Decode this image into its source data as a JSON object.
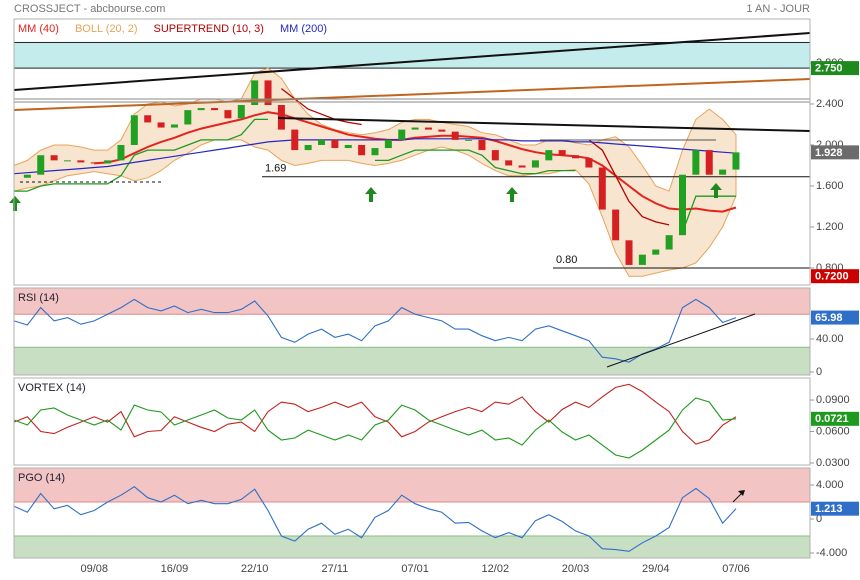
{
  "header": {
    "title": "CROSSJECT - abcbourse.com",
    "period": "1 AN - JOUR"
  },
  "chart_data": [
    {
      "type": "candlestick",
      "categories": [
        null,
        null,
        null,
        null,
        null,
        null,
        "09/08",
        null,
        null,
        null,
        null,
        null,
        "16/09",
        null,
        null,
        null,
        null,
        null,
        "22/10",
        null,
        null,
        null,
        null,
        null,
        "27/11",
        null,
        null,
        null,
        null,
        null,
        "07/01",
        null,
        null,
        null,
        null,
        null,
        "12/02",
        null,
        null,
        null,
        null,
        null,
        "20/03",
        null,
        null,
        null,
        null,
        null,
        "29/04",
        null,
        null,
        null,
        null,
        null,
        "07/06"
      ],
      "values": [
        1.68,
        1.71,
        1.9,
        1.85,
        1.85,
        1.83,
        1.82,
        1.85,
        2.0,
        2.29,
        2.22,
        2.17,
        2.2,
        2.34,
        2.36,
        2.34,
        2.26,
        2.39,
        2.63,
        2.39,
        2.15,
        1.95,
        2.0,
        2.05,
        1.97,
        2.0,
        1.9,
        1.97,
        2.05,
        2.15,
        2.17,
        2.15,
        2.13,
        2.05,
        2.05,
        1.95,
        1.85,
        1.8,
        1.78,
        1.85,
        1.95,
        1.9,
        1.87,
        1.78,
        1.37,
        1.07,
        0.83,
        0.93,
        0.98,
        1.12,
        1.71,
        1.95,
        1.71,
        1.76,
        1.928
      ],
      "up_color": "#22a022",
      "down_color": "#d42020",
      "last_color": "#6b6b6b",
      "ylim": [
        0.634,
        3.229
      ],
      "yticks": [
        {
          "value": 2.8,
          "label": "2.800"
        },
        {
          "value": 2.4,
          "label": "2.400"
        },
        {
          "value": 2.0,
          "label": "2.000"
        },
        {
          "value": 1.6,
          "label": "1.600"
        },
        {
          "value": 1.2,
          "label": "1.200"
        },
        {
          "value": 0.8,
          "label": "0.800"
        }
      ],
      "zones": [
        {
          "from": 2.75,
          "to": 3.0,
          "color": "#c4ecec"
        }
      ],
      "levels": [
        1.69,
        {
          "value": 0.8,
          "label": "0.80"
        }
      ],
      "markers": [
        {
          "value": 2.75,
          "label": "2.750",
          "color": "#1e8a1e"
        },
        {
          "value": 0.72,
          "label": "0.7200",
          "color": "#cc0000"
        }
      ],
      "series": [
        {
          "name": "MM (40)",
          "color": "#e3241c",
          "values": [
            null,
            null,
            null,
            null,
            null,
            null,
            1.82,
            1.83,
            1.86,
            1.92,
            1.98,
            2.03,
            2.07,
            2.12,
            2.16,
            2.19,
            2.22,
            2.25,
            2.29,
            2.32,
            2.3,
            2.26,
            2.22,
            2.18,
            2.14,
            2.1,
            2.08,
            2.06,
            2.05,
            2.05,
            2.07,
            2.08,
            2.09,
            2.09,
            2.08,
            2.07,
            2.04,
            2.0,
            1.96,
            1.93,
            1.91,
            1.9,
            1.89,
            1.87,
            1.8,
            1.7,
            1.6,
            1.5,
            1.43,
            1.38,
            1.37,
            1.38,
            1.36,
            1.35,
            1.39
          ]
        },
        {
          "name": "BOLL (20, 2)",
          "color": "#e8a35a",
          "fill": "#f6dcc0",
          "values": [
            1.8,
            1.85,
            1.95,
            2.0,
            2.0,
            1.98,
            1.95,
            1.95,
            2.05,
            2.3,
            2.4,
            2.42,
            2.38,
            2.4,
            2.45,
            2.45,
            2.42,
            2.45,
            2.7,
            2.75,
            2.65,
            2.45,
            2.3,
            2.2,
            2.15,
            2.12,
            2.1,
            2.12,
            2.15,
            2.22,
            2.25,
            2.25,
            2.22,
            2.2,
            2.18,
            2.12,
            2.1,
            2.05,
            2.0,
            2.0,
            2.05,
            2.05,
            2.02,
            2.0,
            2.05,
            2.08,
            1.98,
            1.8,
            1.6,
            1.55,
            1.95,
            2.25,
            2.35,
            2.25,
            2.1
          ],
          "lower": [
            1.55,
            1.58,
            1.6,
            1.65,
            1.7,
            1.72,
            1.74,
            1.72,
            1.7,
            1.65,
            1.68,
            1.75,
            1.85,
            1.92,
            2.0,
            2.05,
            2.05,
            2.05,
            1.98,
            1.95,
            1.85,
            1.8,
            1.82,
            1.85,
            1.85,
            1.85,
            1.82,
            1.8,
            1.82,
            1.85,
            1.9,
            1.95,
            1.98,
            1.95,
            1.9,
            1.82,
            1.75,
            1.7,
            1.7,
            1.72,
            1.72,
            1.75,
            1.76,
            1.62,
            1.3,
            0.95,
            0.72,
            0.72,
            0.75,
            0.78,
            0.8,
            0.85,
            1.0,
            1.2,
            1.5
          ]
        },
        {
          "name": "SUPERTREND (10, 3)",
          "color": "#b80000",
          "up_color": "#1e9a1e",
          "values": [
            null,
            null,
            null,
            null,
            null,
            null,
            null,
            null,
            null,
            null,
            null,
            null,
            null,
            null,
            null,
            null,
            null,
            null,
            null,
            null,
            2.55,
            2.45,
            2.35,
            2.3,
            2.25,
            2.22,
            2.2,
            null,
            null,
            null,
            null,
            null,
            null,
            null,
            null,
            null,
            null,
            null,
            null,
            null,
            null,
            null,
            null,
            2.05,
            1.95,
            1.7,
            1.45,
            1.3,
            1.25,
            1.22,
            null,
            null,
            null,
            null,
            null
          ],
          "up_values": [
            1.55,
            1.55,
            1.6,
            1.62,
            1.62,
            1.62,
            1.62,
            1.62,
            1.7,
            1.9,
            1.95,
            1.95,
            1.95,
            2.0,
            2.05,
            2.05,
            2.05,
            2.1,
            2.25,
            2.25,
            null,
            null,
            null,
            null,
            null,
            null,
            null,
            1.85,
            1.85,
            1.9,
            1.95,
            1.95,
            1.95,
            1.95,
            1.95,
            1.9,
            1.78,
            1.75,
            1.72,
            1.72,
            1.75,
            1.75,
            1.75,
            null,
            null,
            null,
            null,
            null,
            null,
            null,
            1.15,
            1.5,
            1.5,
            1.5,
            1.5
          ]
        },
        {
          "name": "MM (200)",
          "color": "#2626c4",
          "values": [
            1.72,
            1.73,
            1.74,
            1.75,
            1.76,
            1.77,
            1.78,
            1.79,
            1.81,
            1.83,
            1.85,
            1.87,
            1.89,
            1.91,
            1.93,
            1.95,
            1.97,
            1.99,
            2.01,
            2.03,
            2.04,
            2.05,
            2.05,
            2.05,
            2.05,
            2.05,
            2.05,
            2.05,
            2.05,
            2.05,
            2.06,
            2.06,
            2.06,
            2.06,
            2.06,
            2.06,
            2.05,
            2.05,
            2.04,
            2.04,
            2.04,
            2.04,
            2.03,
            2.03,
            2.02,
            2.01,
            2.0,
            1.99,
            1.98,
            1.97,
            1.96,
            1.95,
            1.94,
            1.93,
            1.92
          ]
        }
      ]
    },
    {
      "type": "line",
      "title": "RSI (14)",
      "ylim": [
        -3.6,
        101.8
      ],
      "yticks": [
        {
          "value": 40,
          "label": "40.00"
        },
        0
      ],
      "upper_zone": 70,
      "lower_zone": 30,
      "series": [
        {
          "color": "#2f6fc8",
          "box_color": "#2f6fc8",
          "values": [
            62,
            57,
            78,
            62,
            66,
            58,
            62,
            70,
            78,
            88,
            78,
            74,
            80,
            72,
            76,
            72,
            72,
            76,
            86,
            68,
            42,
            36,
            46,
            52,
            42,
            46,
            38,
            56,
            62,
            78,
            70,
            66,
            62,
            52,
            52,
            44,
            38,
            42,
            38,
            52,
            56,
            50,
            44,
            38,
            18,
            16,
            12,
            22,
            28,
            36,
            78,
            88,
            78,
            60,
            65.98
          ]
        }
      ]
    },
    {
      "type": "line",
      "title": "VORTEX (14)",
      "ylim": [
        0.0281,
        0.111
      ],
      "yticks": [
        {
          "value": 0.09,
          "label": "0.0900"
        },
        {
          "value": 0.06,
          "label": "0.0600"
        },
        {
          "value": 0.03,
          "label": "0.0300"
        }
      ],
      "series": [
        {
          "color": "#c42020",
          "values": [
            0.069,
            0.074,
            0.06,
            0.058,
            0.064,
            0.069,
            0.074,
            0.069,
            0.079,
            0.055,
            0.06,
            0.061,
            0.074,
            0.069,
            0.064,
            0.06,
            0.067,
            0.069,
            0.06,
            0.079,
            0.088,
            0.086,
            0.079,
            0.083,
            0.088,
            0.083,
            0.088,
            0.074,
            0.069,
            0.055,
            0.06,
            0.069,
            0.074,
            0.079,
            0.083,
            0.079,
            0.088,
            0.086,
            0.093,
            0.079,
            0.069,
            0.081,
            0.088,
            0.083,
            0.093,
            0.102,
            0.105,
            0.098,
            0.088,
            0.079,
            0.06,
            0.048,
            0.052,
            0.066,
            0.074
          ]
        },
        {
          "color": "#1e9a1e",
          "box_color": "#1e9a1e",
          "values": [
            0.071,
            0.0662,
            0.0805,
            0.0824,
            0.0757,
            0.071,
            0.0662,
            0.071,
            0.0614,
            0.0852,
            0.0805,
            0.0786,
            0.0662,
            0.071,
            0.0757,
            0.0805,
            0.0729,
            0.071,
            0.0805,
            0.0614,
            0.0519,
            0.0538,
            0.0614,
            0.0567,
            0.0519,
            0.0567,
            0.0519,
            0.0662,
            0.071,
            0.0852,
            0.0805,
            0.071,
            0.0662,
            0.0614,
            0.0567,
            0.0614,
            0.0519,
            0.0538,
            0.0471,
            0.0614,
            0.071,
            0.0595,
            0.0519,
            0.0567,
            0.0471,
            0.0376,
            0.0348,
            0.0424,
            0.0519,
            0.0614,
            0.0805,
            0.0919,
            0.0881,
            0.071,
            0.0721
          ]
        }
      ]
    },
    {
      "type": "line",
      "title": "PGO (14)",
      "ylim": [
        -4.59,
        6.0
      ],
      "yticks": [
        {
          "value": 4,
          "label": "4.000"
        },
        0,
        {
          "value": -4,
          "label": "-4.000"
        }
      ],
      "upper_zone": 2,
      "lower_zone": -2,
      "series": [
        {
          "color": "#2f6fc8",
          "box_color": "#2f6fc8",
          "values": [
            1.5,
            0.8,
            3.0,
            1.2,
            1.6,
            0.5,
            1.0,
            2.0,
            2.8,
            3.8,
            2.5,
            2.0,
            2.8,
            1.8,
            2.2,
            1.8,
            1.8,
            2.3,
            3.5,
            1.0,
            -2.0,
            -2.6,
            -1.2,
            -0.5,
            -1.8,
            -1.2,
            -2.2,
            0.2,
            1.0,
            2.8,
            1.8,
            1.2,
            0.8,
            -0.5,
            -0.4,
            -1.4,
            -2.2,
            -1.6,
            -2.2,
            -0.2,
            0.5,
            -0.3,
            -1.4,
            -2.0,
            -3.5,
            -3.6,
            -3.8,
            -2.8,
            -2.0,
            -1.0,
            2.5,
            3.6,
            2.4,
            -0.5,
            1.213
          ]
        }
      ]
    }
  ]
}
